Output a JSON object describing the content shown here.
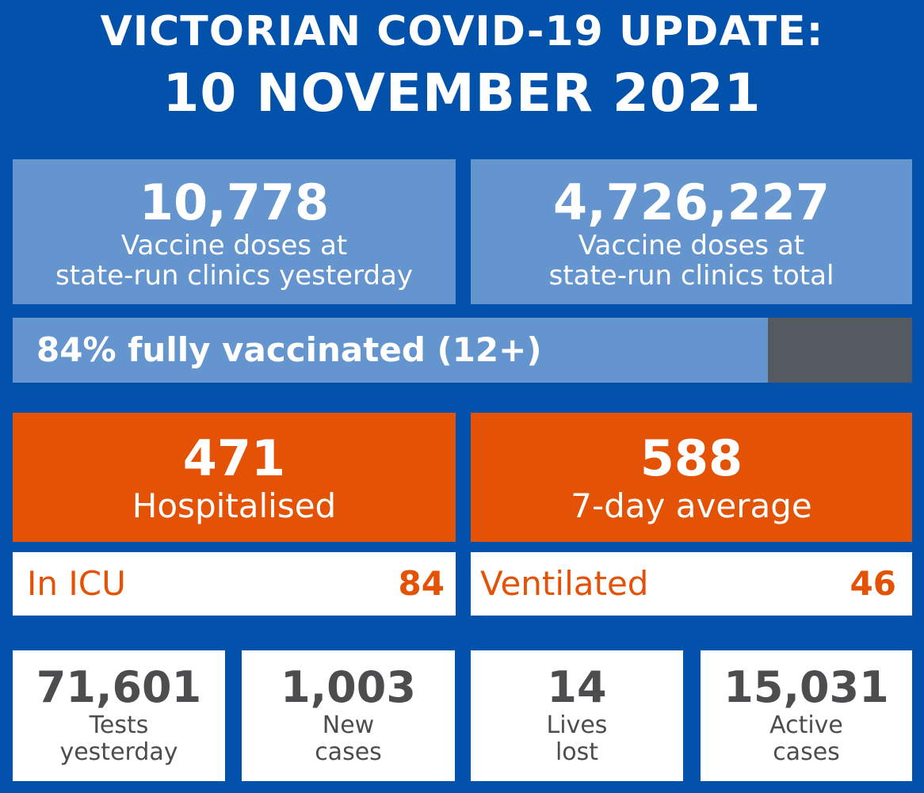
{
  "header": {
    "title": "VICTORIAN COVID-19 UPDATE:",
    "date": "10 NOVEMBER 2021"
  },
  "vaccine": {
    "yesterday": {
      "value": "10,778",
      "label_line1": "Vaccine doses at",
      "label_line2": "state-run clinics yesterday"
    },
    "total": {
      "value": "4,726,227",
      "label_line1": "Vaccine doses at",
      "label_line2": "state-run clinics total"
    },
    "fully_vaccinated": {
      "label": "84% fully vaccinated (12+)",
      "percent": 84
    }
  },
  "hospital": {
    "hospitalised": {
      "value": "471",
      "label": "Hospitalised"
    },
    "seven_day_avg": {
      "value": "588",
      "label": "7-day average"
    },
    "icu": {
      "label": "In ICU",
      "value": "84"
    },
    "ventilated": {
      "label": "Ventilated",
      "value": "46"
    }
  },
  "stats": [
    {
      "value": "71,601",
      "label_line1": "Tests",
      "label_line2": "yesterday"
    },
    {
      "value": "1,003",
      "label_line1": "New",
      "label_line2": "cases"
    },
    {
      "value": "14",
      "label_line1": "Lives",
      "label_line2": "lost"
    },
    {
      "value": "15,031",
      "label_line1": "Active",
      "label_line2": "cases"
    }
  ],
  "colors": {
    "background": "#0251AB",
    "light_blue": "#6595CE",
    "orange": "#E35205",
    "dark_grey": "#555A61",
    "text_grey": "#4D4D4F"
  }
}
